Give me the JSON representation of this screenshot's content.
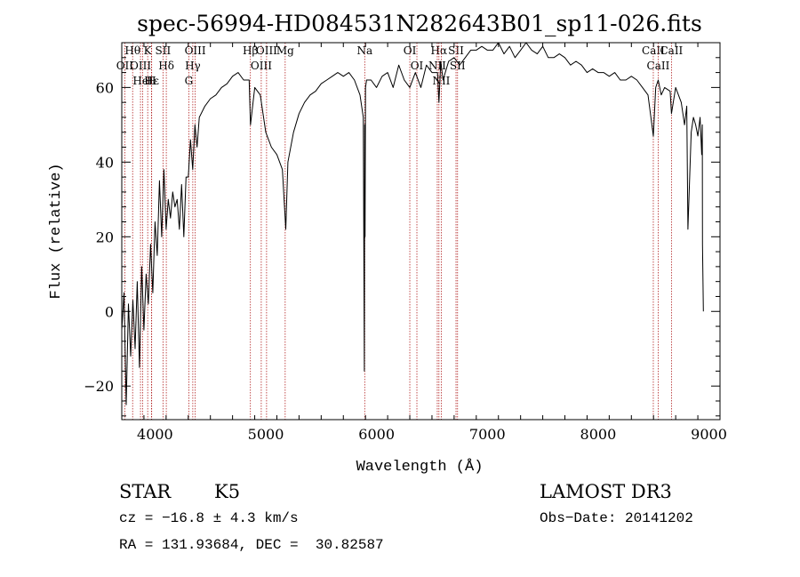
{
  "chart_data": {
    "type": "line",
    "title": "spec-56994-HD084531N282643B01_sp11-026.fits",
    "xlabel": "Wavelength (Å)",
    "ylabel": "Flux (relative)",
    "xlim": [
      3700,
      9100
    ],
    "ylim": [
      -29,
      72
    ],
    "xticks": [
      4000,
      5000,
      6000,
      7000,
      8000,
      9000
    ],
    "yticks": [
      -20,
      0,
      20,
      40,
      60
    ],
    "x_tick_labels": [
      "4000",
      "5000",
      "6000",
      "7000",
      "8000",
      "9000"
    ],
    "y_tick_labels": [
      "−20",
      "0",
      "20",
      "40",
      "60"
    ],
    "grid": false,
    "series": [
      {
        "x": [
          3700,
          3720,
          3740,
          3760,
          3780,
          3800,
          3820,
          3840,
          3860,
          3880,
          3900,
          3920,
          3940,
          3960,
          3980,
          4000,
          4020,
          4040,
          4060,
          4080,
          4100,
          4120,
          4140,
          4160,
          4180,
          4200,
          4220,
          4240,
          4260,
          4280,
          4300,
          4320,
          4340,
          4360,
          4380,
          4400,
          4450,
          4500,
          4550,
          4600,
          4650,
          4700,
          4750,
          4800,
          4850,
          4862,
          4900,
          4950,
          5000,
          5050,
          5100,
          5150,
          5180,
          5200,
          5250,
          5300,
          5350,
          5400,
          5450,
          5500,
          5550,
          5600,
          5650,
          5700,
          5750,
          5800,
          5850,
          5880,
          5890,
          5893,
          5896,
          5900,
          5910,
          5950,
          6000,
          6050,
          6100,
          6150,
          6200,
          6250,
          6300,
          6350,
          6400,
          6450,
          6500,
          6550,
          6563,
          6580,
          6600,
          6650,
          6700,
          6750,
          6800,
          6850,
          6900,
          6950,
          7000,
          7050,
          7100,
          7150,
          7200,
          7250,
          7300,
          7350,
          7400,
          7450,
          7500,
          7550,
          7600,
          7650,
          7700,
          7750,
          7800,
          7850,
          7900,
          7950,
          8000,
          8050,
          8100,
          8150,
          8200,
          8250,
          8300,
          8350,
          8400,
          8450,
          8498,
          8520,
          8542,
          8570,
          8600,
          8650,
          8662,
          8700,
          8750,
          8780,
          8800,
          8810,
          8840,
          8860,
          8880,
          8900,
          8920,
          8935,
          8940,
          8942,
          8950
        ],
        "y": [
          -5,
          5,
          -25,
          2,
          -12,
          3,
          -10,
          8,
          -15,
          12,
          -5,
          10,
          2,
          18,
          5,
          24,
          15,
          35,
          20,
          38,
          22,
          30,
          25,
          32,
          28,
          30,
          22,
          34,
          20,
          36,
          36,
          46,
          38,
          50,
          44,
          52,
          55,
          57,
          58,
          60,
          61,
          63,
          64,
          62,
          62,
          50,
          60,
          58,
          48,
          44,
          42,
          38,
          22,
          40,
          48,
          53,
          56,
          58,
          59,
          61,
          62,
          63,
          64,
          63,
          64,
          62,
          58,
          52,
          -16,
          50,
          20,
          60,
          62,
          62,
          60,
          63,
          64,
          60,
          66,
          62,
          60,
          64,
          60,
          66,
          64,
          64,
          56,
          67,
          62,
          67,
          68,
          66,
          68,
          70,
          70,
          71,
          70,
          70,
          72,
          69,
          71,
          68,
          70,
          72,
          70,
          69,
          71,
          68,
          68,
          69,
          68,
          66,
          67,
          66,
          64,
          65,
          64,
          64,
          63,
          64,
          62,
          62,
          63,
          62,
          60,
          58,
          47,
          60,
          62,
          58,
          60,
          59,
          53,
          60,
          56,
          50,
          55,
          22,
          48,
          52,
          50,
          47,
          52,
          42,
          50,
          18,
          0
        ]
      }
    ],
    "line_marks": [
      {
        "label": "Hθ",
        "x": 3798
      },
      {
        "label": "OII",
        "x": 3727
      },
      {
        "label": "OIII",
        "x": 3869
      },
      {
        "label": "HeI",
        "x": 3889
      },
      {
        "label": "K",
        "x": 3934
      },
      {
        "label": "Hε",
        "x": 3970
      },
      {
        "label": "H",
        "x": 3968
      },
      {
        "label": "SII",
        "x": 4072
      },
      {
        "label": "Hδ",
        "x": 4102
      },
      {
        "label": "OIII",
        "x": 4363
      },
      {
        "label": "Hγ",
        "x": 4341
      },
      {
        "label": "G",
        "x": 4305
      },
      {
        "label": "Hβ",
        "x": 4861
      },
      {
        "label": "OIII",
        "x": 4959
      },
      {
        "label": "OIII",
        "x": 5007
      },
      {
        "label": "Mg",
        "x": 5175
      },
      {
        "label": "Na",
        "x": 5893
      },
      {
        "label": "OI",
        "x": 6300
      },
      {
        "label": "OI",
        "x": 6364
      },
      {
        "label": "Hα",
        "x": 6563
      },
      {
        "label": "NII",
        "x": 6548
      },
      {
        "label": "NII",
        "x": 6584
      },
      {
        "label": "SII",
        "x": 6717
      },
      {
        "label": "SII",
        "x": 6731
      },
      {
        "label": "CaII",
        "x": 8498
      },
      {
        "label": "CaII",
        "x": 8542
      },
      {
        "label": "CaII",
        "x": 8662
      }
    ]
  },
  "footer": {
    "type_label": "STAR",
    "subclass": "K5",
    "source": "LAMOST DR3",
    "cz": "cz = −16.8 ± 4.3 km/s",
    "obs_date": "Obs−Date: 20141202",
    "radec": "RA = 131.93684, DEC =  30.82587"
  },
  "colors": {
    "spectrum": "#000000",
    "line_marks": "#b22222",
    "axes": "#000000"
  }
}
